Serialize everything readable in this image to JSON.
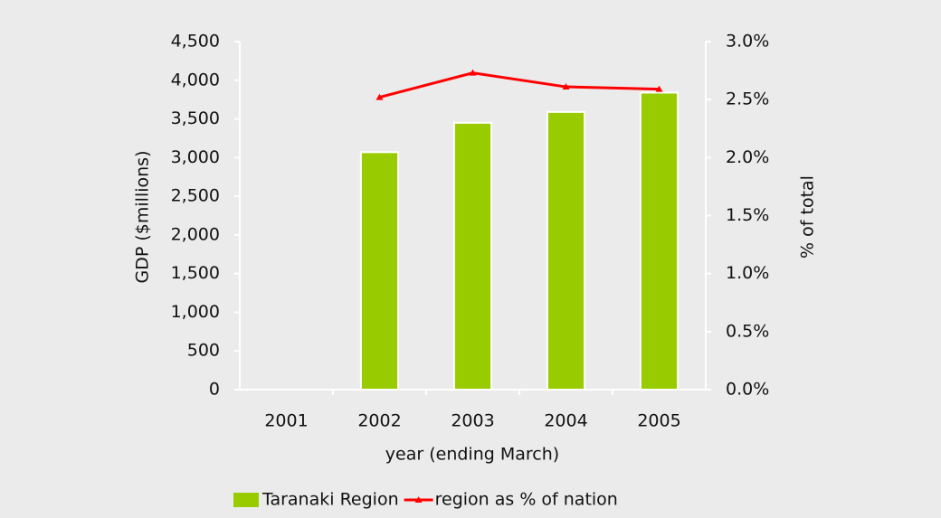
{
  "chart_data": {
    "type": "bar-line",
    "xlabel": "year (ending March)",
    "ylabel": "GDP ($millions)",
    "y2label": "% of total",
    "categories": [
      "2001",
      "2002",
      "2003",
      "2004",
      "2005"
    ],
    "series": [
      {
        "name": "Taranaki Region",
        "type": "bar",
        "color": "#99cc00",
        "values": [
          null,
          3070,
          3450,
          3590,
          3840
        ]
      },
      {
        "name": "region as % of nation",
        "type": "line",
        "axis": "y2",
        "color": "#ff0000",
        "values": [
          null,
          2.52,
          2.73,
          2.61,
          2.59
        ]
      }
    ],
    "ylim": [
      0,
      4500
    ],
    "yticks": [
      0,
      500,
      {
        "value": 1000,
        "label": "1,000"
      },
      {
        "value": 1500,
        "label": "1,500"
      },
      {
        "value": 2000,
        "label": "2,000"
      },
      {
        "value": 2500,
        "label": "2,500"
      },
      {
        "value": 3000,
        "label": "3,000"
      },
      {
        "value": 3500,
        "label": "3,500"
      },
      {
        "value": 4000,
        "label": "4,000"
      },
      {
        "value": 4500,
        "label": "4,500"
      }
    ],
    "y2lim": [
      0,
      3
    ],
    "y2ticks": [
      {
        "value": 0,
        "label": "0.0%"
      },
      {
        "value": 0.5,
        "label": "0.5%"
      },
      {
        "value": 1,
        "label": "1.0%"
      },
      {
        "value": 1.5,
        "label": "1.5%"
      },
      {
        "value": 2,
        "label": "2.0%"
      },
      {
        "value": 2.5,
        "label": "2.5%"
      },
      {
        "value": 3,
        "label": "3.0%"
      }
    ],
    "legend": "bottom"
  }
}
